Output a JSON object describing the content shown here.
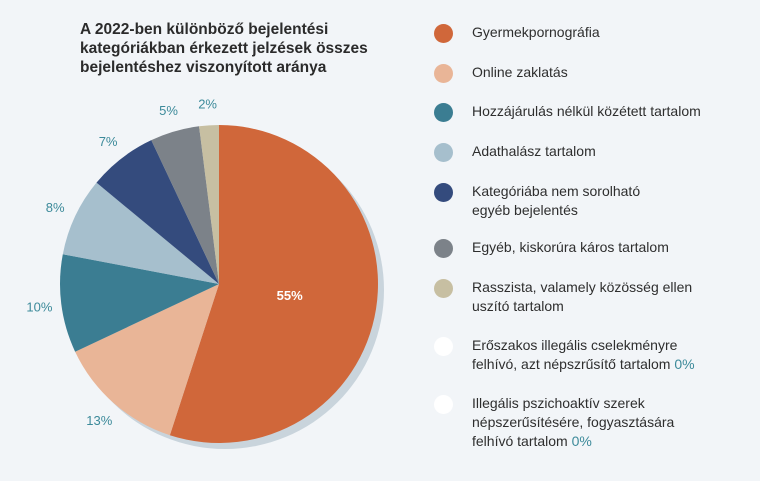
{
  "chart_data": {
    "type": "pie",
    "title": "A 2022-ben különböző bejelentési kategóriákban érkezett jelzések összes bejelentéshez viszonyított aránya",
    "unit": "%",
    "slices": [
      {
        "label": "Gyermekpornográfia",
        "value": 55,
        "value_label": "55%",
        "color": "#d0673a"
      },
      {
        "label": "Online zaklatás",
        "value": 13,
        "value_label": "13%",
        "color": "#e9b597"
      },
      {
        "label": "Hozzájárulás nélkül közétett tartalom",
        "value": 10,
        "value_label": "10%",
        "color": "#3b7d92"
      },
      {
        "label": "Adathalász tartalom",
        "value": 8,
        "value_label": "8%",
        "color": "#a6bfcd"
      },
      {
        "label": "Kategóriába nem sorolható egyéb bejelentés",
        "value": 7,
        "value_label": "7%",
        "color": "#344b7d"
      },
      {
        "label": "Egyéb, kiskorúra káros tartalom",
        "value": 5,
        "value_label": "5%",
        "color": "#7c8289"
      },
      {
        "label": "Rasszista, valamely közösség ellen uszító tartalom",
        "value": 2,
        "value_label": "2%",
        "color": "#c7bfa2"
      },
      {
        "label": "Erőszakos illegális cselekményre felhívó, azt népszrűsítő tartalom",
        "value": 0,
        "value_label": "0%",
        "color": "#ffffff"
      },
      {
        "label": "Illegális pszichoaktív szerek népszerűsítésére, fogyasztására felhívó tartalom",
        "value": 0,
        "value_label": "0%",
        "color": "#ffffff"
      }
    ]
  }
}
